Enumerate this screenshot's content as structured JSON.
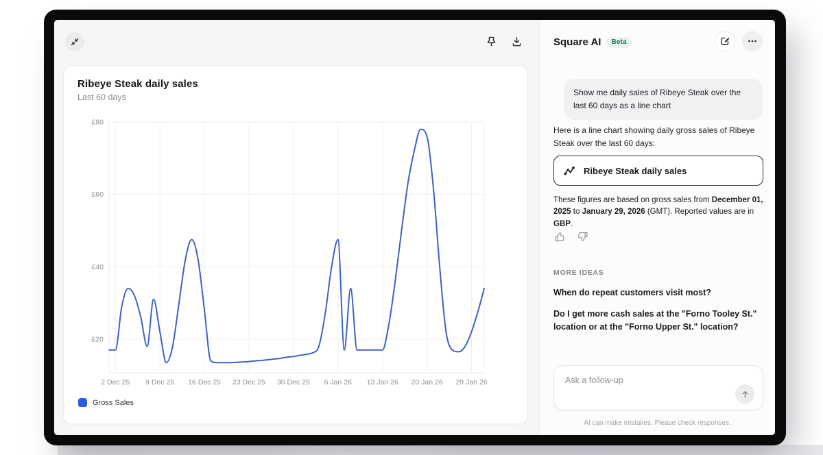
{
  "icons": [
    "collapse-icon",
    "pin-icon",
    "download-icon",
    "compose-icon",
    "ellipsis-icon",
    "activity-chart-icon",
    "thumbs-up-icon",
    "thumbs-down-icon",
    "send-up-arrow-icon"
  ],
  "chart_data": {
    "type": "line",
    "title": "Ribeye Steak daily sales",
    "subtitle": "Last 60 days",
    "date_range": "December 01, 2025 - January 29, 2026",
    "x_days_total": 60,
    "x_tick_labels": [
      "2 Dec 25",
      "9 Dec 25",
      "16 Dec 25",
      "23 Dec 25",
      "30 Dec 25",
      "6 Jan 26",
      "13 Jan 26",
      "20 Jan 26",
      "29 Jan 26"
    ],
    "x_tick_days": [
      1,
      8,
      15,
      22,
      29,
      36,
      43,
      50,
      57
    ],
    "y_ticks": [
      20,
      40,
      60,
      80
    ],
    "y_tick_prefix": "£",
    "ylim": [
      10.7,
      80
    ],
    "grid": true,
    "legend_position": "bottom-left",
    "series": [
      {
        "name": "Gross Sales",
        "color_line": "#3c62c6",
        "color_legend": "#2e5be0",
        "values": [
          17,
          17,
          29,
          34,
          32,
          26,
          18,
          31,
          22,
          13.5,
          18,
          30,
          42,
          47.5,
          42,
          28,
          14,
          13.5,
          13.5,
          13.5,
          13.6,
          13.7,
          13.8,
          14,
          14.1,
          14.3,
          14.5,
          14.7,
          15,
          15.2,
          15.5,
          15.8,
          16.2,
          18,
          27,
          40,
          47.5,
          17,
          34,
          17,
          17,
          17,
          17,
          17,
          24,
          36,
          50,
          63,
          72,
          78,
          76,
          62,
          40,
          22,
          17,
          16.5,
          18,
          22,
          27.5,
          34
        ]
      }
    ]
  },
  "right_panel": {
    "title": "Square AI",
    "badge": "Beta",
    "user_message": "Show me daily sales of Ribeye Steak over the last 60 days as a line chart",
    "ai_intro": "Here is a line chart showing daily gross sales of Ribeye Steak over the last 60 days:",
    "chart_link_label": "Ribeye Steak daily sales",
    "figures": {
      "s1": "These figures are based on gross sales from ",
      "s2": "December 01, 2025",
      "s3": " to ",
      "s4": "January 29, 2026",
      "s5": " (GMT). Reported values are in ",
      "s6": "GBP",
      "s7": "."
    },
    "more_ideas_label": "MORE IDEAS",
    "suggestions": [
      "When do repeat customers visit most?",
      "Do I get more cash sales at the \"Forno Tooley St.\" location or at the \"Forno Upper St.\" location?"
    ],
    "input_placeholder": "Ask a follow-up",
    "disclaimer": "AI can make mistakes. Please check responses."
  }
}
